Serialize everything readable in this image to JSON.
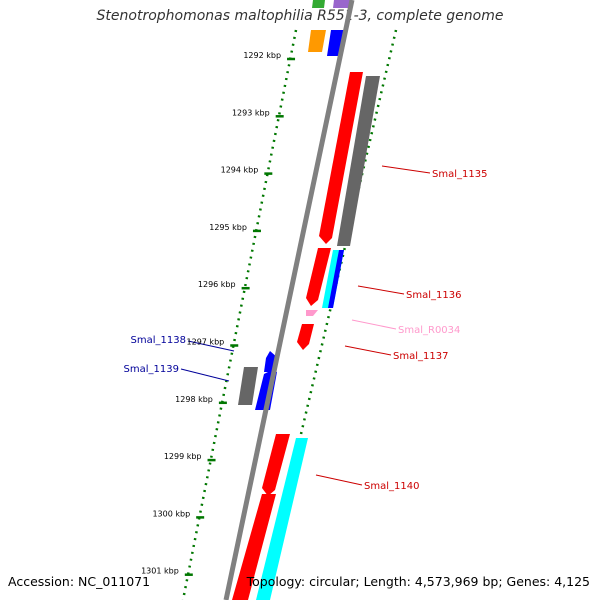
{
  "title": "Stenotrophomonas maltophilia R551-3, complete genome",
  "footer": {
    "accession": "Accession: NC_011071",
    "topology": "Topology: circular; Length: 4,573,969 bp; Genes: 4,125"
  },
  "ticks": [
    {
      "kbp": 1292,
      "label": "1292 kbp"
    },
    {
      "kbp": 1293,
      "label": "1293 kbp"
    },
    {
      "kbp": 1294,
      "label": "1294 kbp"
    },
    {
      "kbp": 1295,
      "label": "1295 kbp"
    },
    {
      "kbp": 1296,
      "label": "1296 kbp"
    },
    {
      "kbp": 1297,
      "label": "1297 kbp"
    },
    {
      "kbp": 1298,
      "label": "1298 kbp"
    },
    {
      "kbp": 1299,
      "label": "1299 kbp"
    },
    {
      "kbp": 1300,
      "label": "1300 kbp"
    },
    {
      "kbp": 1301,
      "label": "1301 kbp"
    }
  ],
  "colors": {
    "backbone": "#808080",
    "cds": "#ff0000",
    "rna": "#ff99cc",
    "gc": "#666666",
    "skew": "#0000ff",
    "cyan": "#00ffff",
    "ticks": "#007700",
    "label_red": "#cc0000",
    "label_blue": "#000099",
    "label_pink": "#ff99cc"
  },
  "gene_labels": [
    {
      "id": "Smal_1135",
      "color": "label_red"
    },
    {
      "id": "Smal_1136",
      "color": "label_red"
    },
    {
      "id": "Smal_R0034",
      "color": "label_pink"
    },
    {
      "id": "Smal_1137",
      "color": "label_red"
    },
    {
      "id": "Smal_1138",
      "color": "label_blue"
    },
    {
      "id": "Smal_1139",
      "color": "label_blue"
    },
    {
      "id": "Smal_1140",
      "color": "label_red"
    }
  ]
}
